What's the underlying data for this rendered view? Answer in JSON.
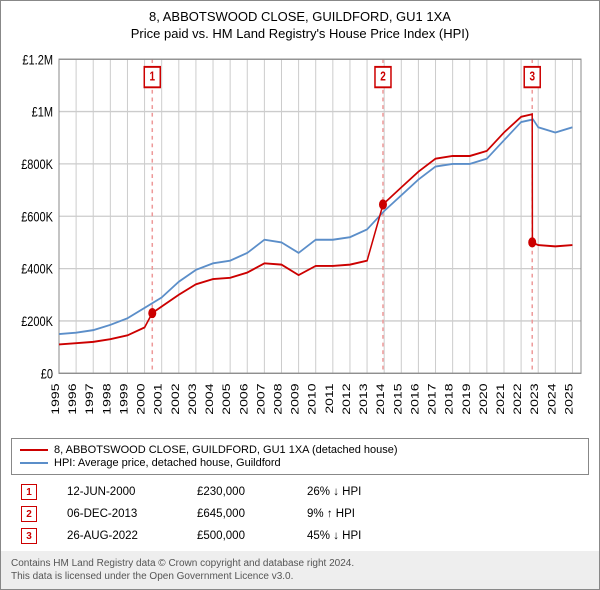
{
  "titles": {
    "line1": "8, ABBOTSWOOD CLOSE, GUILDFORD, GU1 1XA",
    "line2": "Price paid vs. HM Land Registry's House Price Index (HPI)"
  },
  "chart": {
    "type": "line",
    "background_color": "#ffffff",
    "grid_color": "#cccccc",
    "plot_border_color": "#888888",
    "xlim": [
      1995,
      2025.5
    ],
    "ylim": [
      0,
      1200000
    ],
    "yticks": [
      0,
      200000,
      400000,
      600000,
      800000,
      1000000,
      1200000
    ],
    "ytick_labels": [
      "£0",
      "£200K",
      "£400K",
      "£600K",
      "£800K",
      "£1M",
      "£1.2M"
    ],
    "xticks": [
      1995,
      1996,
      1997,
      1998,
      1999,
      2000,
      2001,
      2002,
      2003,
      2004,
      2005,
      2006,
      2007,
      2008,
      2009,
      2010,
      2011,
      2012,
      2013,
      2014,
      2015,
      2016,
      2017,
      2018,
      2019,
      2020,
      2021,
      2022,
      2023,
      2024,
      2025
    ],
    "xtick_labels": [
      "1995",
      "1996",
      "1997",
      "1998",
      "1999",
      "2000",
      "2001",
      "2002",
      "2003",
      "2004",
      "2005",
      "2006",
      "2007",
      "2008",
      "2009",
      "2010",
      "2011",
      "2012",
      "2013",
      "2014",
      "2015",
      "2016",
      "2017",
      "2018",
      "2019",
      "2020",
      "2021",
      "2022",
      "2023",
      "2024",
      "2025"
    ],
    "series": [
      {
        "name": "hpi",
        "color": "#5b8ec9",
        "width": 1.5,
        "data": [
          [
            1995,
            150000
          ],
          [
            1996,
            155000
          ],
          [
            1997,
            165000
          ],
          [
            1998,
            185000
          ],
          [
            1999,
            210000
          ],
          [
            2000,
            250000
          ],
          [
            2001,
            290000
          ],
          [
            2002,
            350000
          ],
          [
            2003,
            395000
          ],
          [
            2004,
            420000
          ],
          [
            2005,
            430000
          ],
          [
            2006,
            460000
          ],
          [
            2007,
            510000
          ],
          [
            2008,
            500000
          ],
          [
            2009,
            460000
          ],
          [
            2010,
            510000
          ],
          [
            2011,
            510000
          ],
          [
            2012,
            520000
          ],
          [
            2013,
            550000
          ],
          [
            2014,
            620000
          ],
          [
            2015,
            680000
          ],
          [
            2016,
            740000
          ],
          [
            2017,
            790000
          ],
          [
            2018,
            800000
          ],
          [
            2019,
            800000
          ],
          [
            2020,
            820000
          ],
          [
            2021,
            890000
          ],
          [
            2022,
            960000
          ],
          [
            2022.7,
            970000
          ],
          [
            2023,
            940000
          ],
          [
            2024,
            920000
          ],
          [
            2025,
            940000
          ]
        ]
      },
      {
        "name": "property",
        "color": "#cc0000",
        "width": 1.5,
        "data": [
          [
            1995,
            110000
          ],
          [
            1996,
            115000
          ],
          [
            1997,
            120000
          ],
          [
            1998,
            130000
          ],
          [
            1999,
            145000
          ],
          [
            2000,
            175000
          ],
          [
            2000.45,
            230000
          ],
          [
            2001,
            255000
          ],
          [
            2002,
            300000
          ],
          [
            2003,
            340000
          ],
          [
            2004,
            360000
          ],
          [
            2005,
            365000
          ],
          [
            2006,
            385000
          ],
          [
            2007,
            420000
          ],
          [
            2008,
            415000
          ],
          [
            2009,
            375000
          ],
          [
            2010,
            410000
          ],
          [
            2011,
            410000
          ],
          [
            2012,
            415000
          ],
          [
            2013,
            430000
          ],
          [
            2013.93,
            645000
          ],
          [
            2014,
            650000
          ],
          [
            2015,
            710000
          ],
          [
            2016,
            770000
          ],
          [
            2017,
            820000
          ],
          [
            2018,
            830000
          ],
          [
            2019,
            830000
          ],
          [
            2020,
            850000
          ],
          [
            2021,
            920000
          ],
          [
            2022,
            980000
          ],
          [
            2022.65,
            990000
          ],
          [
            2022.66,
            500000
          ],
          [
            2023,
            490000
          ],
          [
            2024,
            485000
          ],
          [
            2025,
            490000
          ]
        ]
      }
    ],
    "event_markers": [
      {
        "num": "1",
        "x": 2000.45,
        "y": 230000,
        "vline": true
      },
      {
        "num": "2",
        "x": 2013.93,
        "y": 645000,
        "vline": true
      },
      {
        "num": "3",
        "x": 2022.65,
        "y": 500000,
        "vline": true
      }
    ],
    "marker_color": "#cc0000",
    "vline_color": "#ee9999",
    "vline_dash": "3,3",
    "label_fontsize": 11
  },
  "legend": {
    "items": [
      {
        "color": "#cc0000",
        "label": "8, ABBOTSWOOD CLOSE, GUILDFORD, GU1 1XA (detached house)"
      },
      {
        "color": "#5b8ec9",
        "label": "HPI: Average price, detached house, Guildford"
      }
    ]
  },
  "events_table": {
    "rows": [
      {
        "num": "1",
        "date": "12-JUN-2000",
        "price": "£230,000",
        "hpi": "26% ↓ HPI"
      },
      {
        "num": "2",
        "date": "06-DEC-2013",
        "price": "£645,000",
        "hpi": "9% ↑ HPI"
      },
      {
        "num": "3",
        "date": "26-AUG-2022",
        "price": "£500,000",
        "hpi": "45% ↓ HPI"
      }
    ]
  },
  "footer": {
    "line1": "Contains HM Land Registry data © Crown copyright and database right 2024.",
    "line2": "This data is licensed under the Open Government Licence v3.0."
  }
}
